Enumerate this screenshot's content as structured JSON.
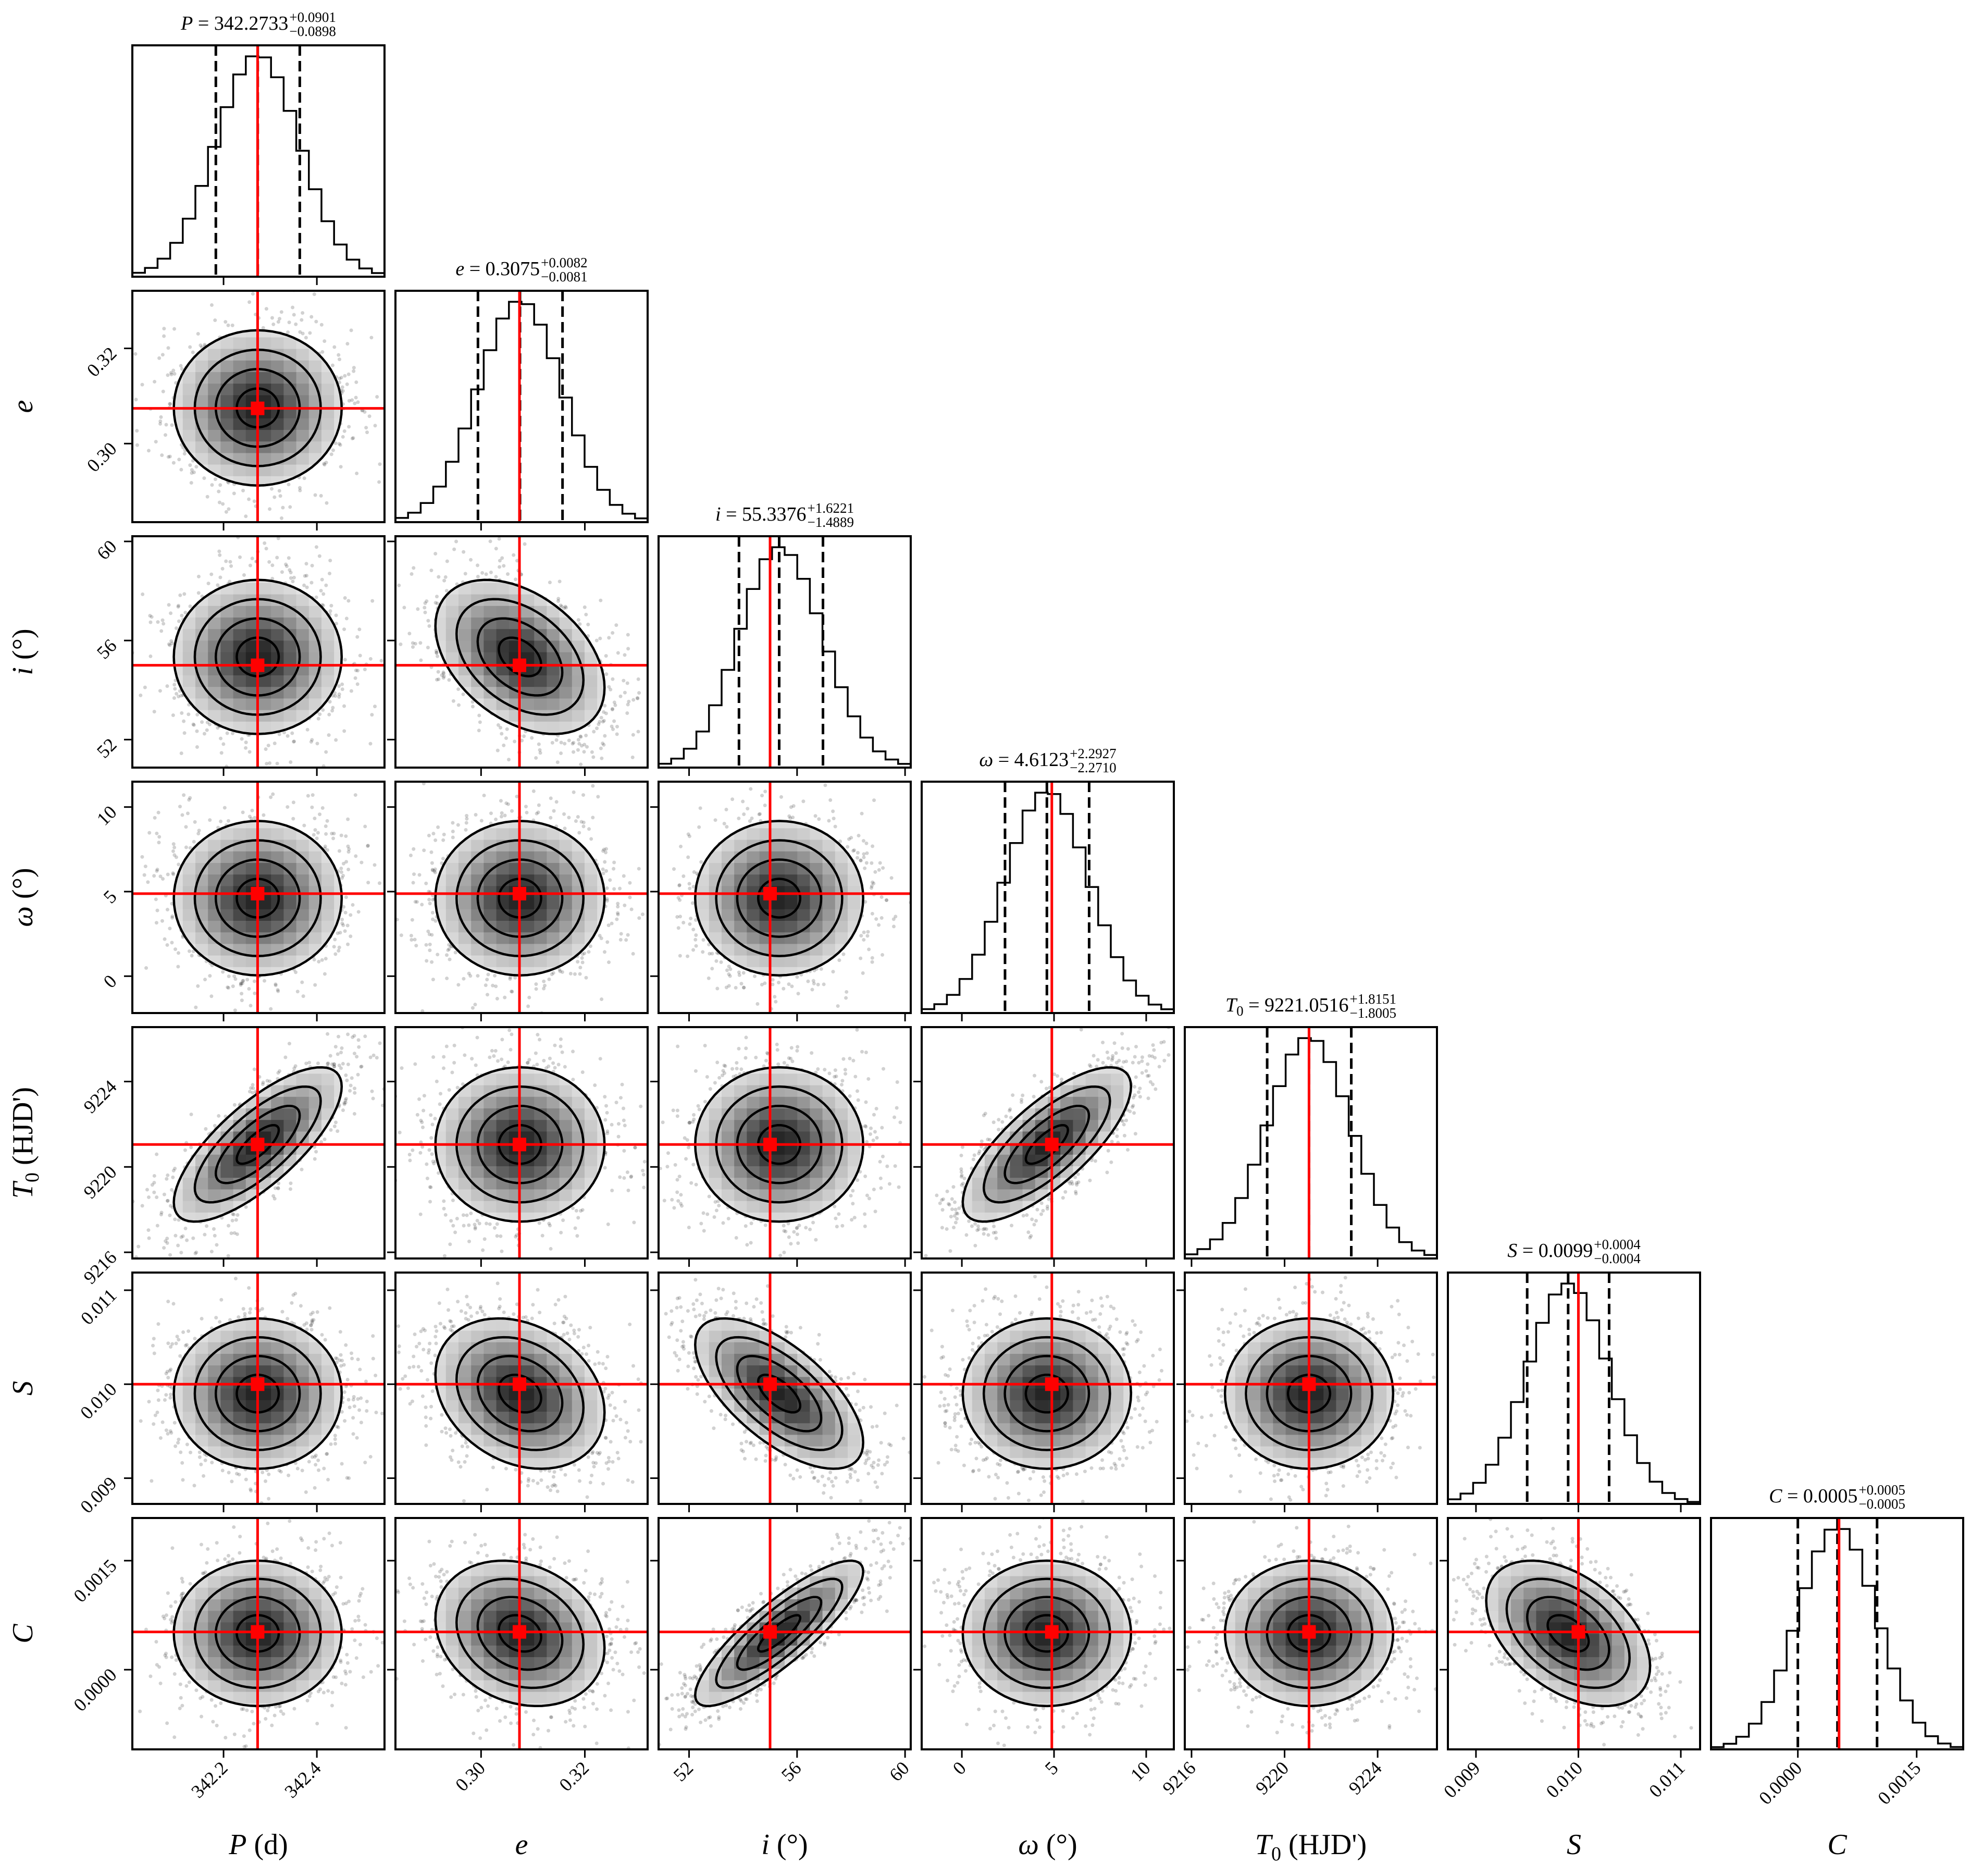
{
  "chart_data": {
    "type": "corner",
    "grid": false,
    "legend": "none",
    "colors": {
      "truth": "#ff0000",
      "quantiles": "#000000",
      "contours": "#000000",
      "histogram": "#000000"
    },
    "parameters": [
      {
        "key": "P",
        "symbol": "P",
        "sub": "",
        "unit": "(d)",
        "median_text": "342.2733",
        "plus_text": "+0.0901",
        "minus_text": "−0.0898",
        "median": 342.2733,
        "err_plus": 0.0901,
        "err_minus": 0.0898,
        "truth": 342.273,
        "range": [
          342.0045,
          342.545
        ],
        "ticks": [
          342.2,
          342.4
        ],
        "tick_labels": [
          "342.2",
          "342.4"
        ]
      },
      {
        "key": "e",
        "symbol": "e",
        "sub": "",
        "unit": "",
        "median_text": "0.3075",
        "plus_text": "+0.0082",
        "minus_text": "−0.0081",
        "median": 0.3075,
        "err_plus": 0.0082,
        "err_minus": 0.0081,
        "truth": 0.3074,
        "range": [
          0.2835,
          0.3321
        ],
        "ticks": [
          0.3,
          0.32
        ],
        "tick_labels": [
          "0.30",
          "0.32"
        ]
      },
      {
        "key": "i",
        "symbol": "i",
        "sub": "",
        "unit": "(°)",
        "median_text": "55.3376",
        "plus_text": "+1.6221",
        "minus_text": "−1.4889",
        "median": 55.3376,
        "err_plus": 1.6221,
        "err_minus": 1.4889,
        "truth": 55.0,
        "range": [
          50.87,
          60.21
        ],
        "ticks": [
          52,
          56,
          60
        ],
        "tick_labels": [
          "52",
          "56",
          "60"
        ]
      },
      {
        "key": "omega",
        "symbol": "ω",
        "sub": "",
        "unit": "(°)",
        "median_text": "4.6123",
        "plus_text": "+2.2927",
        "minus_text": "−2.2710",
        "median": 4.6123,
        "err_plus": 2.2927,
        "err_minus": 2.271,
        "truth": 4.88,
        "range": [
          -2.18,
          11.5
        ],
        "ticks": [
          0,
          5,
          10
        ],
        "tick_labels": [
          "0",
          "5",
          "10"
        ]
      },
      {
        "key": "T0",
        "symbol": "T",
        "sub": "0",
        "unit": "(HJD')",
        "median_text": "9221.0516",
        "plus_text": "+1.8151",
        "minus_text": "−1.8005",
        "median": 9221.0516,
        "err_plus": 1.8151,
        "err_minus": 1.8005,
        "truth": 9221.05,
        "range": [
          9215.71,
          9226.55
        ],
        "ticks": [
          9216,
          9220,
          9224
        ],
        "tick_labels": [
          "9216",
          "9220",
          "9224"
        ]
      },
      {
        "key": "S",
        "symbol": "S",
        "sub": "",
        "unit": "",
        "median_text": "0.0099",
        "plus_text": "+0.0004",
        "minus_text": "−0.0004",
        "median": 0.0099,
        "err_plus": 0.0004,
        "err_minus": 0.0004,
        "truth": 0.01,
        "range": [
          0.008726,
          0.011188
        ],
        "ticks": [
          0.009,
          0.01,
          0.011
        ],
        "tick_labels": [
          "0.009",
          "0.010",
          "0.011"
        ]
      },
      {
        "key": "C",
        "symbol": "C",
        "sub": "",
        "unit": "",
        "median_text": "0.0005",
        "plus_text": "+0.0005",
        "minus_text": "−0.0005",
        "median": 0.0005,
        "err_plus": 0.0005,
        "err_minus": 0.0005,
        "truth": 0.00052,
        "range": [
          -0.001096,
          0.002087
        ],
        "ticks": [
          0.0,
          0.0015
        ],
        "tick_labels": [
          "0.0000",
          "0.0015"
        ]
      }
    ],
    "correlations": [
      {
        "pair": [
          "P",
          "T0"
        ],
        "rho": 0.75
      },
      {
        "pair": [
          "e",
          "i"
        ],
        "rho": -0.4
      },
      {
        "pair": [
          "e",
          "S"
        ],
        "rho": -0.25
      },
      {
        "pair": [
          "e",
          "C"
        ],
        "rho": -0.2
      },
      {
        "pair": [
          "i",
          "S"
        ],
        "rho": -0.65
      },
      {
        "pair": [
          "i",
          "C"
        ],
        "rho": 0.85
      },
      {
        "pair": [
          "omega",
          "T0"
        ],
        "rho": 0.75
      },
      {
        "pair": [
          "S",
          "C"
        ],
        "rho": -0.45
      }
    ]
  }
}
